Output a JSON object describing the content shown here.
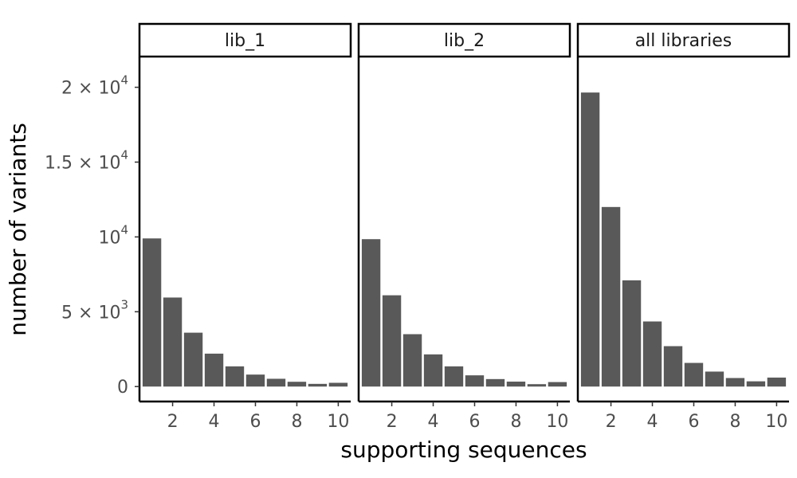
{
  "chart_data": {
    "type": "bar",
    "xlabel": "supporting sequences",
    "ylabel": "number of variants",
    "ylim": [
      -1000,
      22000
    ],
    "xlim": [
      0.4,
      10.6
    ],
    "x": [
      1,
      2,
      3,
      4,
      5,
      6,
      7,
      8,
      9,
      10
    ],
    "x_ticks": [
      2,
      4,
      6,
      8,
      10
    ],
    "y_ticks": [
      {
        "value": 0,
        "label": "0"
      },
      {
        "value": 5000,
        "mantissa": "5 × 10",
        "exponent": "3"
      },
      {
        "value": 10000,
        "mantissa": "10",
        "exponent": "4"
      },
      {
        "value": 15000,
        "mantissa": "1.5 × 10",
        "exponent": "4"
      },
      {
        "value": 20000,
        "mantissa": "2 × 10",
        "exponent": "4"
      }
    ],
    "panels": [
      {
        "label": "lib_1",
        "values": [
          9900,
          5950,
          3600,
          2200,
          1350,
          800,
          520,
          320,
          180,
          250
        ]
      },
      {
        "label": "lib_2",
        "values": [
          9850,
          6100,
          3500,
          2150,
          1350,
          750,
          500,
          330,
          160,
          300
        ]
      },
      {
        "label": "all libraries",
        "values": [
          19650,
          12000,
          7100,
          4350,
          2700,
          1580,
          1000,
          570,
          350,
          600
        ]
      }
    ],
    "grid": false,
    "bar_color": "#595959"
  }
}
